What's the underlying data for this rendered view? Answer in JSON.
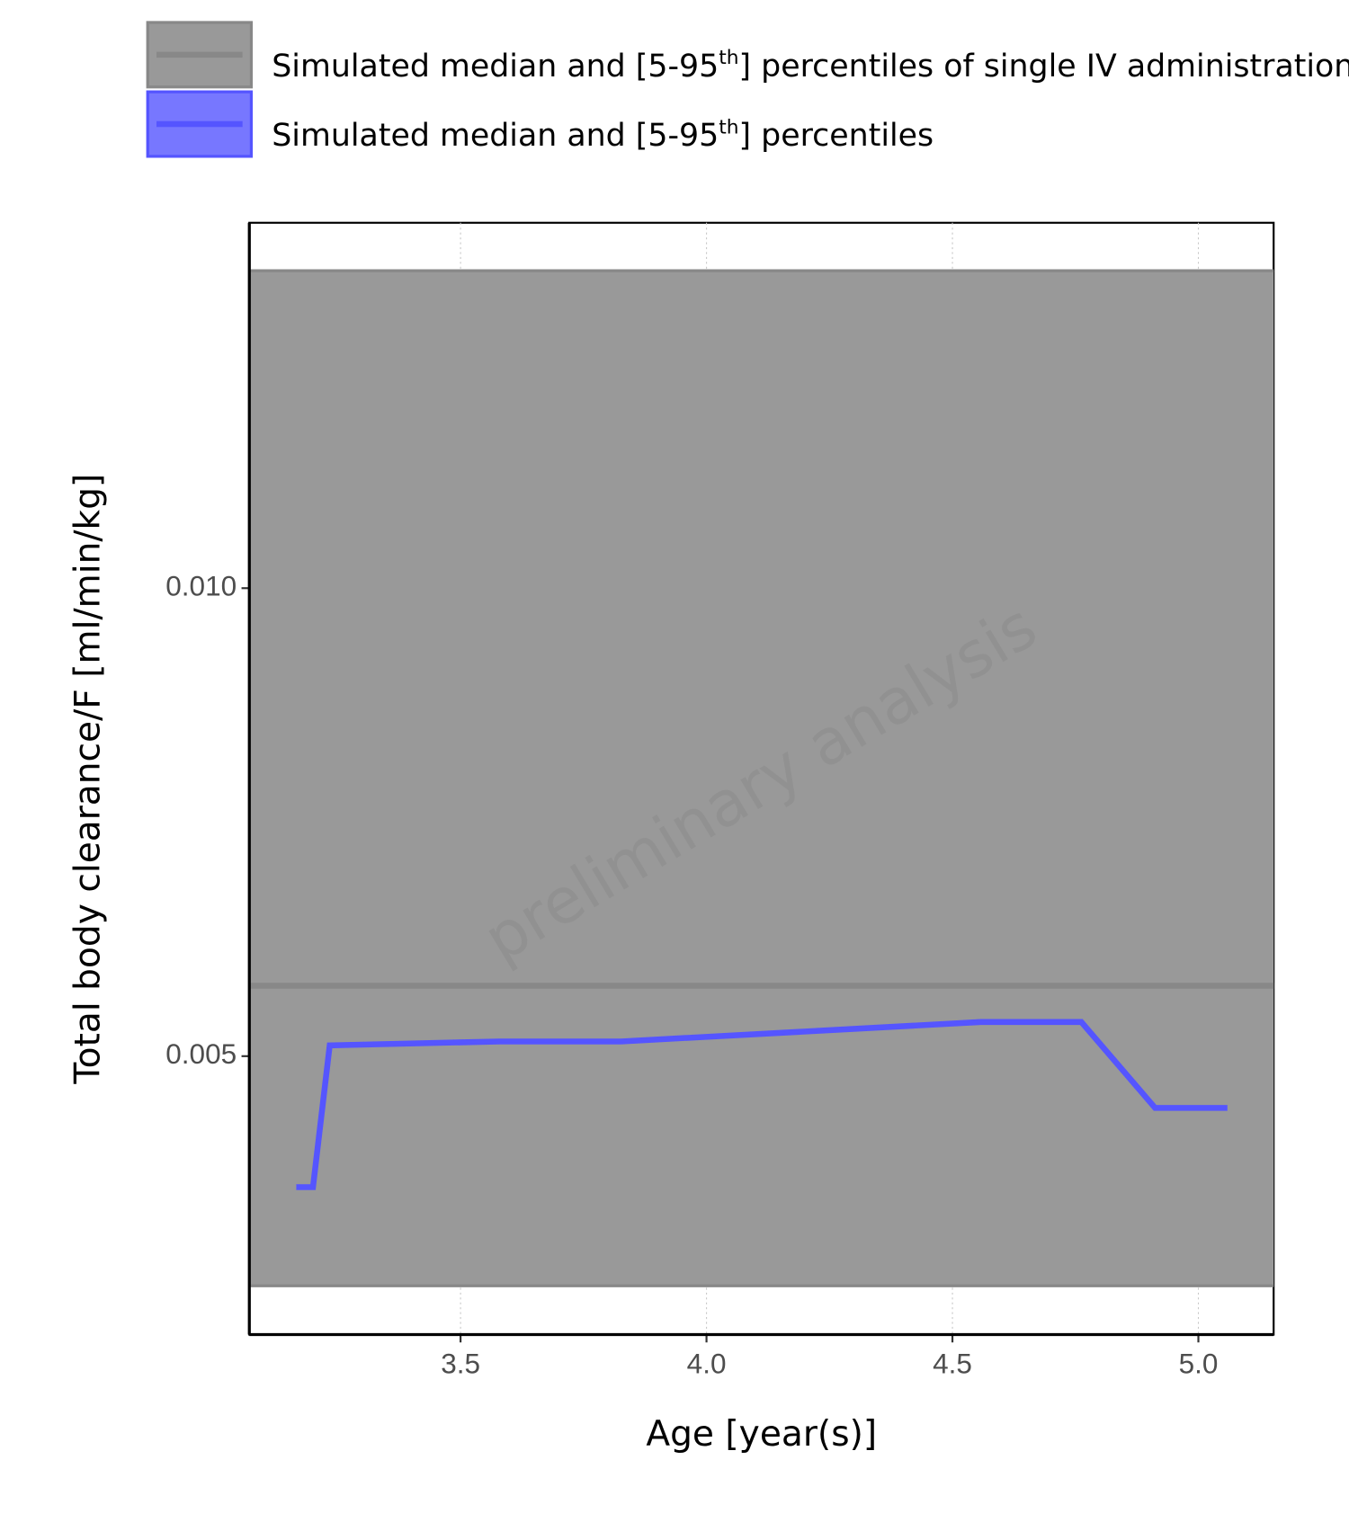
{
  "chart_data": {
    "type": "line",
    "x_label": "Age [year(s)]",
    "y_label": "Total body clearance/F [ml/min/kg]",
    "watermark": "preliminary analysis",
    "xlim": [
      3.0706,
      5.153
    ],
    "ylim": [
      0.002025,
      0.013904
    ],
    "xticks": [
      3.5,
      {
        "value": 4,
        "label": "4.0"
      },
      4.5,
      {
        "value": 5,
        "label": "5.0"
      }
    ],
    "yticks": [
      0.005,
      {
        "value": 0.01,
        "label": "0.010"
      }
    ],
    "grid": true,
    "series": [
      {
        "name": "Simulated median and [5-95th] percentiles of single IV administration",
        "color": "#888888",
        "band_color": "#999999",
        "x": [
          3.0706,
          5.153
        ],
        "values": [
          0.005752,
          0.005752
        ],
        "lower": [
          0.002547,
          0.002547
        ],
        "upper": [
          0.013392,
          0.013392
        ]
      },
      {
        "name": "Simulated median and [5-95th] percentiles",
        "color": "#5555ff",
        "band_color": "#7777ff",
        "x": [
          3.166,
          3.2,
          3.234,
          3.578,
          3.826,
          4.558,
          4.762,
          4.912,
          5.059
        ],
        "values": [
          0.003601,
          0.003601,
          0.005115,
          0.005157,
          0.005157,
          0.005365,
          0.005365,
          0.004447,
          0.004447
        ]
      }
    ]
  }
}
